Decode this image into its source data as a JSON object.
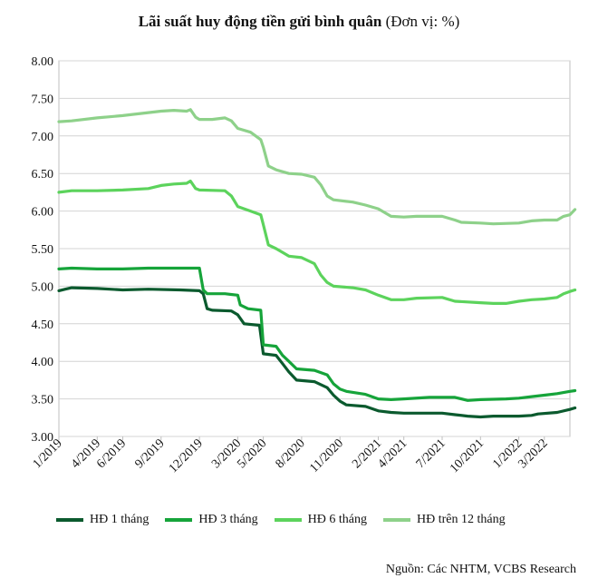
{
  "title_bold": "Lãi suất huy động tiền gửi bình quân",
  "title_unit": "(Đơn vị: %)",
  "source": "Nguồn: Các NHTM, VCBS Research",
  "chart_data": {
    "type": "line",
    "title": "Lãi suất huy động tiền gửi bình quân (Đơn vị: %)",
    "ylim": [
      3.0,
      8.0
    ],
    "yticks": [
      "3.00",
      "3.50",
      "4.00",
      "4.50",
      "5.00",
      "5.50",
      "6.00",
      "6.50",
      "7.00",
      "7.50",
      "8.00"
    ],
    "xlim": [
      0,
      40
    ],
    "xticks": [
      {
        "t": 0,
        "label": "1/2019"
      },
      {
        "t": 3,
        "label": "4/2019"
      },
      {
        "t": 5,
        "label": "6/2019"
      },
      {
        "t": 8,
        "label": "9/2019"
      },
      {
        "t": 11,
        "label": "12/2019"
      },
      {
        "t": 14,
        "label": "3/2020"
      },
      {
        "t": 16,
        "label": "5/2020"
      },
      {
        "t": 19,
        "label": "8/2020"
      },
      {
        "t": 22,
        "label": "11/2020"
      },
      {
        "t": 25,
        "label": "2/2021"
      },
      {
        "t": 27,
        "label": "4/2021"
      },
      {
        "t": 30,
        "label": "7/2021"
      },
      {
        "t": 33,
        "label": "10/2021"
      },
      {
        "t": 36,
        "label": "1/2022"
      },
      {
        "t": 38,
        "label": "3/2022"
      }
    ],
    "grid": "horizontal",
    "legend_position": "bottom",
    "series": [
      {
        "name": "HĐ 1 tháng",
        "color": "#0b5a2e",
        "points": [
          [
            0,
            4.94
          ],
          [
            0.5,
            4.96
          ],
          [
            1,
            4.98
          ],
          [
            3,
            4.97
          ],
          [
            5,
            4.95
          ],
          [
            7,
            4.96
          ],
          [
            9.5,
            4.95
          ],
          [
            11,
            4.94
          ],
          [
            11.3,
            4.9
          ],
          [
            11.6,
            4.7
          ],
          [
            12,
            4.68
          ],
          [
            13.5,
            4.67
          ],
          [
            14,
            4.62
          ],
          [
            14.5,
            4.5
          ],
          [
            15.7,
            4.48
          ],
          [
            16,
            4.1
          ],
          [
            17,
            4.08
          ],
          [
            17.5,
            3.97
          ],
          [
            18,
            3.86
          ],
          [
            18.6,
            3.75
          ],
          [
            20,
            3.73
          ],
          [
            21,
            3.65
          ],
          [
            21.5,
            3.55
          ],
          [
            22,
            3.47
          ],
          [
            22.5,
            3.42
          ],
          [
            24,
            3.4
          ],
          [
            25,
            3.34
          ],
          [
            26,
            3.32
          ],
          [
            27,
            3.31
          ],
          [
            30,
            3.31
          ],
          [
            31,
            3.29
          ],
          [
            32,
            3.27
          ],
          [
            33,
            3.26
          ],
          [
            34,
            3.27
          ],
          [
            36,
            3.27
          ],
          [
            37,
            3.28
          ],
          [
            37.5,
            3.3
          ],
          [
            39,
            3.32
          ],
          [
            40,
            3.36
          ],
          [
            40.4,
            3.38
          ]
        ]
      },
      {
        "name": "HĐ 3 tháng",
        "color": "#16a43a",
        "points": [
          [
            0,
            5.23
          ],
          [
            1,
            5.24
          ],
          [
            3,
            5.23
          ],
          [
            5,
            5.23
          ],
          [
            7,
            5.24
          ],
          [
            9,
            5.24
          ],
          [
            11,
            5.24
          ],
          [
            11.3,
            4.95
          ],
          [
            11.6,
            4.9
          ],
          [
            13,
            4.9
          ],
          [
            14,
            4.88
          ],
          [
            14.2,
            4.75
          ],
          [
            14.8,
            4.7
          ],
          [
            15.8,
            4.68
          ],
          [
            16,
            4.22
          ],
          [
            17,
            4.2
          ],
          [
            17.5,
            4.08
          ],
          [
            18,
            4.0
          ],
          [
            18.6,
            3.9
          ],
          [
            20,
            3.88
          ],
          [
            21,
            3.82
          ],
          [
            21.5,
            3.7
          ],
          [
            22,
            3.63
          ],
          [
            22.5,
            3.6
          ],
          [
            24,
            3.56
          ],
          [
            25,
            3.5
          ],
          [
            26,
            3.49
          ],
          [
            27,
            3.5
          ],
          [
            29,
            3.52
          ],
          [
            31,
            3.52
          ],
          [
            32,
            3.48
          ],
          [
            33,
            3.49
          ],
          [
            35,
            3.5
          ],
          [
            36,
            3.51
          ],
          [
            37,
            3.53
          ],
          [
            38,
            3.55
          ],
          [
            39,
            3.57
          ],
          [
            40,
            3.6
          ],
          [
            40.4,
            3.61
          ]
        ]
      },
      {
        "name": "HĐ 6 tháng",
        "color": "#5cd35c",
        "points": [
          [
            0,
            6.25
          ],
          [
            1,
            6.27
          ],
          [
            3,
            6.27
          ],
          [
            5,
            6.28
          ],
          [
            7,
            6.3
          ],
          [
            8,
            6.34
          ],
          [
            9,
            6.36
          ],
          [
            10,
            6.37
          ],
          [
            10.3,
            6.4
          ],
          [
            10.7,
            6.3
          ],
          [
            11,
            6.28
          ],
          [
            13,
            6.27
          ],
          [
            13.5,
            6.2
          ],
          [
            14,
            6.06
          ],
          [
            15,
            6.0
          ],
          [
            15.8,
            5.95
          ],
          [
            16,
            5.82
          ],
          [
            16.4,
            5.55
          ],
          [
            17,
            5.5
          ],
          [
            17.5,
            5.45
          ],
          [
            18,
            5.4
          ],
          [
            19,
            5.38
          ],
          [
            20,
            5.3
          ],
          [
            20.5,
            5.15
          ],
          [
            21,
            5.05
          ],
          [
            21.5,
            5.0
          ],
          [
            23,
            4.98
          ],
          [
            24,
            4.95
          ],
          [
            25,
            4.88
          ],
          [
            26,
            4.82
          ],
          [
            27,
            4.82
          ],
          [
            28,
            4.84
          ],
          [
            30,
            4.85
          ],
          [
            31,
            4.8
          ],
          [
            33,
            4.78
          ],
          [
            34,
            4.77
          ],
          [
            35,
            4.77
          ],
          [
            36,
            4.8
          ],
          [
            37,
            4.82
          ],
          [
            38,
            4.83
          ],
          [
            39,
            4.85
          ],
          [
            39.5,
            4.9
          ],
          [
            40,
            4.93
          ],
          [
            40.4,
            4.95
          ]
        ]
      },
      {
        "name": "HĐ trên 12 tháng",
        "color": "#8ed18a",
        "points": [
          [
            0,
            7.19
          ],
          [
            1,
            7.2
          ],
          [
            3,
            7.24
          ],
          [
            5,
            7.27
          ],
          [
            7,
            7.31
          ],
          [
            8,
            7.33
          ],
          [
            9,
            7.34
          ],
          [
            10,
            7.33
          ],
          [
            10.3,
            7.35
          ],
          [
            10.7,
            7.25
          ],
          [
            11,
            7.22
          ],
          [
            12,
            7.22
          ],
          [
            13,
            7.24
          ],
          [
            13.5,
            7.2
          ],
          [
            14,
            7.1
          ],
          [
            15,
            7.05
          ],
          [
            15.8,
            6.95
          ],
          [
            16,
            6.85
          ],
          [
            16.4,
            6.6
          ],
          [
            17,
            6.55
          ],
          [
            18,
            6.5
          ],
          [
            19,
            6.49
          ],
          [
            20,
            6.45
          ],
          [
            20.5,
            6.35
          ],
          [
            21,
            6.2
          ],
          [
            21.5,
            6.15
          ],
          [
            23,
            6.12
          ],
          [
            24,
            6.08
          ],
          [
            25,
            6.03
          ],
          [
            26,
            5.93
          ],
          [
            27,
            5.92
          ],
          [
            28,
            5.93
          ],
          [
            30,
            5.93
          ],
          [
            31,
            5.88
          ],
          [
            31.5,
            5.85
          ],
          [
            33,
            5.84
          ],
          [
            34,
            5.83
          ],
          [
            36,
            5.84
          ],
          [
            37,
            5.87
          ],
          [
            38,
            5.88
          ],
          [
            39,
            5.88
          ],
          [
            39.5,
            5.93
          ],
          [
            40,
            5.95
          ],
          [
            40.4,
            6.02
          ]
        ]
      }
    ]
  }
}
